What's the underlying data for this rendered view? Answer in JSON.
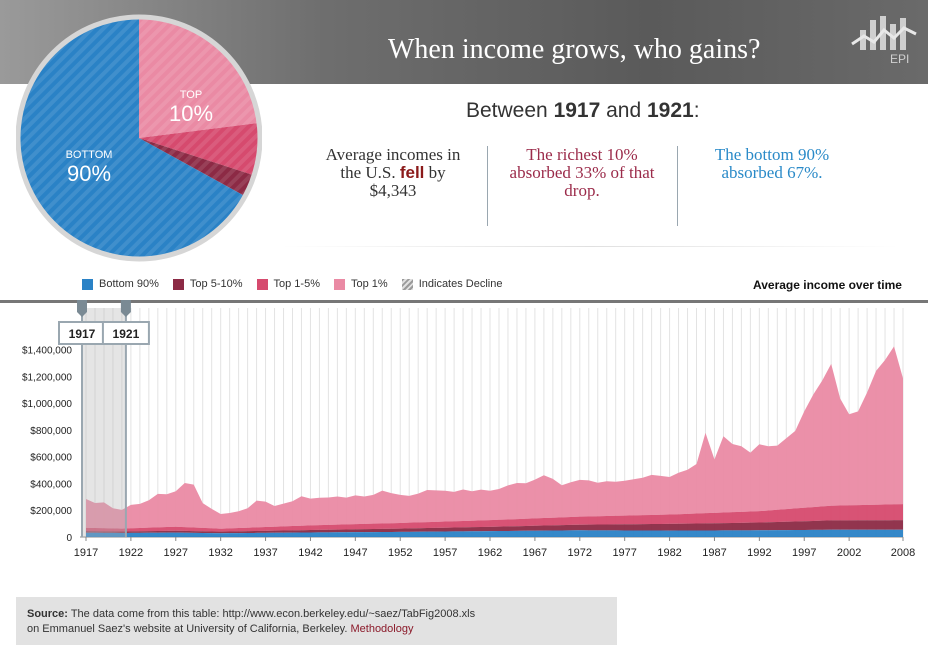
{
  "header": {
    "title": "When income grows, who gains?",
    "logo_text": "EPI"
  },
  "pie": {
    "top_label": "TOP",
    "top_value": "10%",
    "bottom_label": "BOTTOM",
    "bottom_value": "90%",
    "shares": {
      "bottom_90": 67,
      "top_5_10": 3,
      "top_1_5": 7,
      "top_1": 23
    },
    "colors": {
      "bottom_90": "#2a82c6",
      "top_5_10": "#8c2a45",
      "top_1_5": "#d64a6e",
      "top_1": "#ea8aa4"
    }
  },
  "summary": {
    "prefix": "Between ",
    "year_start": "1917",
    "connector": " and ",
    "year_end": "1921",
    "suffix": ":",
    "stat1_a": "Average incomes in the U.S. ",
    "stat1_fell": "fell",
    "stat1_b": " by $4,343",
    "stat2": "The richest 10% absorbed 33% of that drop.",
    "stat3": "The bottom 90% absorbed 67%."
  },
  "legend": {
    "items": [
      {
        "label": "Bottom 90%",
        "color": "#2a82c6"
      },
      {
        "label": "Top 5-10%",
        "color": "#8c2a45"
      },
      {
        "label": "Top 1-5%",
        "color": "#d64a6e"
      },
      {
        "label": "Top 1%",
        "color": "#ea8aa4"
      },
      {
        "label": "Indicates Decline",
        "color": "#9a9a9a"
      }
    ],
    "chart_title": "Average income over time"
  },
  "selection": {
    "start": "1917",
    "end": "1921"
  },
  "source": {
    "label": "Source:",
    "text1": " The data come from this table: http://www.econ.berkeley.edu/~saez/TabFig2008.xls",
    "text2": "on Emmanuel Saez's website at University of California, Berkeley. ",
    "link": "Methodology"
  },
  "chart_data": {
    "type": "area",
    "title": "Average income over time",
    "x_ticks": [
      1917,
      1922,
      1927,
      1932,
      1937,
      1942,
      1947,
      1952,
      1957,
      1962,
      1967,
      1972,
      1977,
      1982,
      1987,
      1992,
      1997,
      2002,
      2008
    ],
    "y_ticks": [
      "0",
      "$200,000",
      "$400,000",
      "$600,000",
      "$800,000",
      "$1,000,000",
      "$1,200,000",
      "$1,400,000"
    ],
    "ylim": [
      0,
      1450000
    ],
    "xlim": [
      1917,
      2008
    ],
    "stacked": true,
    "series": [
      {
        "name": "Bottom 90%",
        "color": "#2a82c6",
        "x": [
          1917,
          1921,
          1927,
          1932,
          1942,
          1952,
          1962,
          1972,
          1982,
          1992,
          2000,
          2008
        ],
        "values": [
          32000,
          30000,
          33000,
          28000,
          34000,
          38000,
          44000,
          50000,
          48000,
          50000,
          54000,
          54000
        ]
      },
      {
        "name": "Top 5-10%",
        "color": "#8c2a45",
        "x": [
          1917,
          1921,
          1927,
          1932,
          1942,
          1952,
          1962,
          1972,
          1982,
          1992,
          2000,
          2008
        ],
        "values": [
          12000,
          11000,
          14000,
          12000,
          18000,
          25000,
          32000,
          42000,
          50000,
          58000,
          70000,
          72000
        ]
      },
      {
        "name": "Top 1-5%",
        "color": "#d64a6e",
        "x": [
          1917,
          1921,
          1927,
          1932,
          1942,
          1952,
          1962,
          1972,
          1982,
          1992,
          2000,
          2008
        ],
        "values": [
          25000,
          22000,
          30000,
          22000,
          35000,
          42000,
          50000,
          60000,
          70000,
          85000,
          110000,
          120000
        ]
      },
      {
        "name": "Top 1%",
        "color": "#ea8aa4",
        "x": [
          1917,
          1918,
          1919,
          1920,
          1921,
          1922,
          1923,
          1924,
          1925,
          1926,
          1927,
          1928,
          1929,
          1930,
          1931,
          1932,
          1933,
          1934,
          1935,
          1936,
          1937,
          1938,
          1939,
          1940,
          1941,
          1942,
          1943,
          1944,
          1945,
          1946,
          1947,
          1948,
          1949,
          1950,
          1951,
          1952,
          1953,
          1954,
          1955,
          1956,
          1957,
          1958,
          1959,
          1960,
          1961,
          1962,
          1963,
          1964,
          1965,
          1966,
          1967,
          1968,
          1969,
          1970,
          1971,
          1972,
          1973,
          1974,
          1975,
          1976,
          1977,
          1978,
          1979,
          1980,
          1981,
          1982,
          1983,
          1984,
          1985,
          1986,
          1987,
          1988,
          1989,
          1990,
          1991,
          1992,
          1993,
          1994,
          1995,
          1996,
          1997,
          1998,
          1999,
          2000,
          2001,
          2002,
          2003,
          2004,
          2005,
          2006,
          2007,
          2008
        ],
        "values": [
          215000,
          187000,
          193000,
          150000,
          140000,
          175000,
          180000,
          205000,
          250000,
          245000,
          265000,
          330000,
          320000,
          185000,
          145000,
          110000,
          115000,
          125000,
          145000,
          200000,
          190000,
          155000,
          170000,
          185000,
          220000,
          200000,
          205000,
          205000,
          210000,
          200000,
          215000,
          205000,
          215000,
          245000,
          225000,
          210000,
          200000,
          215000,
          240000,
          235000,
          230000,
          220000,
          235000,
          220000,
          230000,
          220000,
          230000,
          255000,
          270000,
          265000,
          290000,
          320000,
          290000,
          240000,
          260000,
          275000,
          270000,
          250000,
          260000,
          255000,
          260000,
          270000,
          280000,
          300000,
          290000,
          280000,
          310000,
          330000,
          370000,
          600000,
          400000,
          570000,
          510000,
          490000,
          440000,
          500000,
          480000,
          480000,
          530000,
          580000,
          720000,
          840000,
          940000,
          1060000,
          800000,
          680000,
          700000,
          840000,
          1000000,
          1080000,
          1180000,
          940000
        ]
      }
    ],
    "stacked_totals_note": "Top 1% values approximate the visible layer thickness"
  }
}
